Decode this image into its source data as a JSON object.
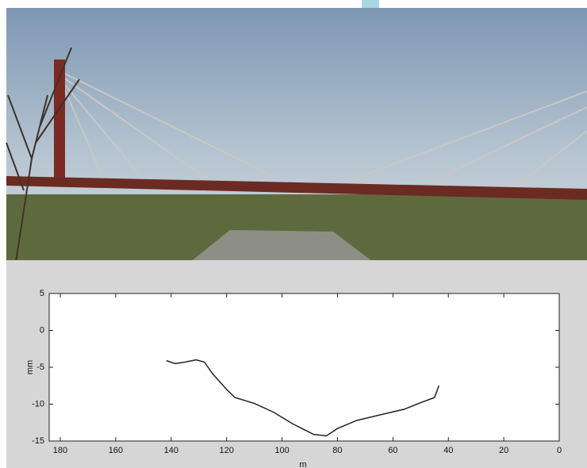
{
  "chart_data": {
    "type": "line",
    "xlabel": "m",
    "ylabel": "mm",
    "x": [
      141.7,
      138.6,
      135,
      131,
      128,
      125,
      120,
      117,
      110,
      103,
      96,
      88.6,
      84,
      80,
      73,
      64,
      56,
      50,
      45,
      43.4
    ],
    "values": [
      -4.1,
      -4.5,
      -4.3,
      -4.0,
      -4.3,
      -5.9,
      -8.0,
      -9.1,
      -9.9,
      -11.1,
      -12.7,
      -14.1,
      -14.3,
      -13.3,
      -12.2,
      -11.4,
      -10.7,
      -9.8,
      -9.1,
      -7.5
    ],
    "color": "#222222",
    "xlim": [
      184,
      0
    ],
    "xticks": [
      180,
      160,
      140,
      120,
      100,
      80,
      60,
      40,
      20,
      0
    ],
    "ylim": [
      -15,
      5
    ],
    "yticks": [
      5,
      0,
      -5,
      -10,
      -15
    ],
    "grid": false
  }
}
